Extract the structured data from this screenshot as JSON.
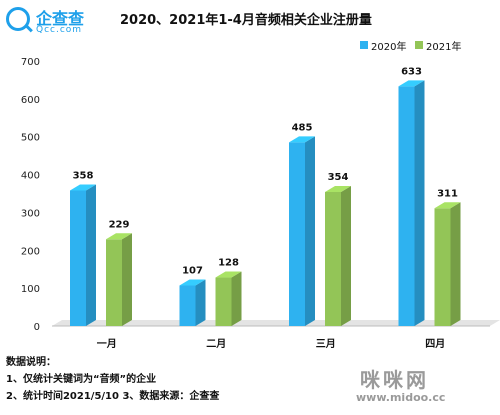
{
  "brand": {
    "name": "企查查",
    "domain": "Qcc.com",
    "color": "#1ea0ea"
  },
  "chart_data": {
    "type": "bar",
    "title": "2020、2021年1-4月音频相关企业注册量",
    "categories": [
      "一月",
      "二月",
      "三月",
      "四月"
    ],
    "series": [
      {
        "name": "2020年",
        "values": [
          358,
          107,
          485,
          633
        ],
        "color": "#2eb2f0"
      },
      {
        "name": "2021年",
        "values": [
          229,
          128,
          354,
          311
        ],
        "color": "#93c557"
      }
    ],
    "ylim": [
      0,
      700
    ],
    "yticks": [
      0,
      100,
      200,
      300,
      400,
      500,
      600,
      700
    ],
    "grid": false,
    "legend_position": "top-right",
    "style": "3d-bar",
    "show_data_labels": true
  },
  "notes": {
    "heading": "数据说明：",
    "line1": "1、仅统计关键词为“音频”的企业",
    "line2": "2、统计时间2021/5/10   3、数据来源：企查查"
  },
  "watermark": {
    "text": "咪咪网",
    "url": "www.midoo.cc"
  }
}
